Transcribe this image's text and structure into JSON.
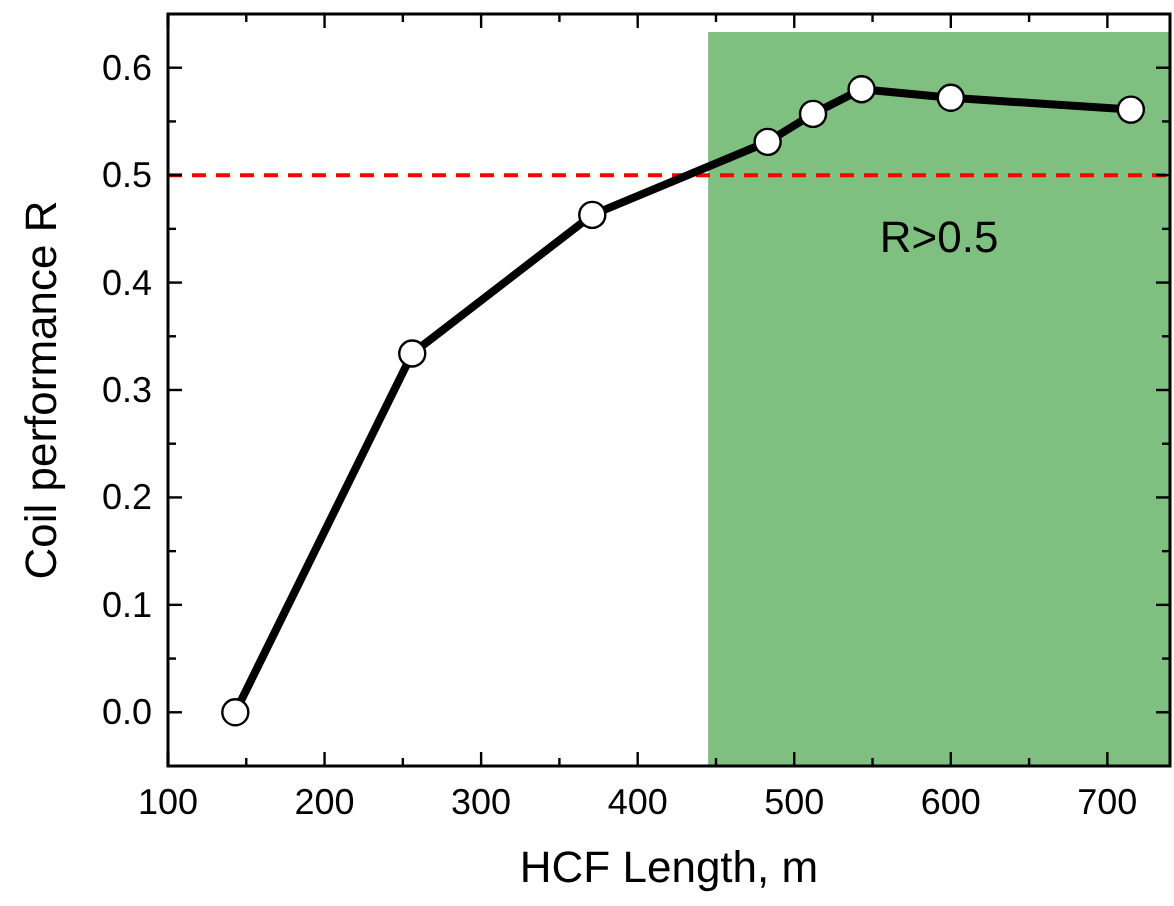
{
  "chart_data": {
    "type": "line",
    "xlabel": "HCF Length, m",
    "ylabel": "Coil performance R",
    "x": [
      143,
      256,
      371,
      483,
      512,
      543,
      600,
      715
    ],
    "series": [
      {
        "color": "#000000",
        "values": [
          0,
          0.334,
          0.463,
          0.531,
          0.557,
          0.58,
          0.572,
          0.561
        ]
      }
    ],
    "marker": "circle",
    "line_style": "solid",
    "grid": false,
    "xlim": [
      100,
      740
    ],
    "ylim": [
      -0.05,
      0.65
    ],
    "xticks": [
      100,
      {
        "value": 150,
        "label": null
      },
      200,
      {
        "value": 250,
        "label": null
      },
      300,
      {
        "value": 350,
        "label": null
      },
      400,
      {
        "value": 450,
        "label": null
      },
      500,
      {
        "value": 550,
        "label": null
      },
      600,
      {
        "value": 650,
        "label": null
      },
      700
    ],
    "yticks": [
      {
        "value": 0,
        "label": "0.0"
      },
      {
        "value": 0.05,
        "label": null
      },
      0.1,
      {
        "value": 0.15,
        "label": null
      },
      0.2,
      {
        "value": 0.25,
        "label": null
      },
      0.3,
      {
        "value": 0.35,
        "label": null
      },
      0.4,
      {
        "value": 0.45,
        "label": null
      },
      0.5,
      {
        "value": 0.55,
        "label": null
      },
      0.6
    ],
    "ref_lines": [
      {
        "axis": "y",
        "value": 0.5,
        "color": "#ff0000",
        "line_style": "dashed"
      }
    ],
    "bands": [
      {
        "axis": "x",
        "from": 445,
        "to": 740,
        "label": "R>0.5",
        "color": "#008000"
      }
    ]
  }
}
